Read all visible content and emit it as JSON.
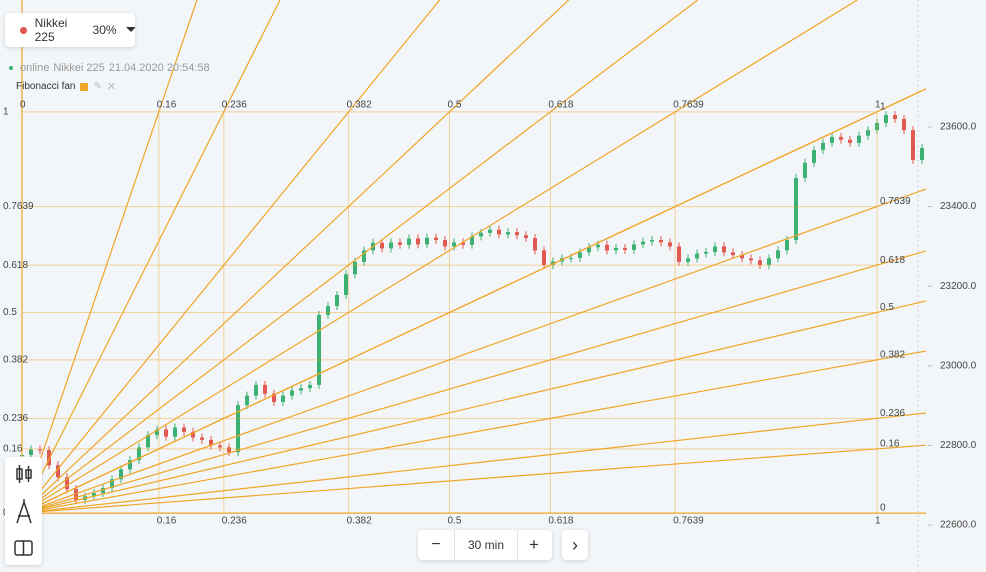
{
  "header": {
    "instrument": "Nikkei 225",
    "share": "30%"
  },
  "status": {
    "state": "online",
    "instrument": "Nikkei 225",
    "timestamp": "21.04.2020 20:54:58"
  },
  "drawing": {
    "label": "Fibonacci fan"
  },
  "controls": {
    "minus": "−",
    "timeframe": "30 min",
    "plus": "+",
    "next": "›"
  },
  "chart_data": {
    "type": "candlestick",
    "values": [
      22776,
      22790,
      22788,
      22750,
      22720,
      22690,
      22663,
      22672,
      22680,
      22693,
      22715,
      22740,
      22763,
      22795,
      22826,
      22840,
      22822,
      22845,
      22834,
      22820,
      22814,
      22800,
      22795,
      22783,
      22901,
      22925,
      22952,
      22930,
      22909,
      22925,
      22938,
      22944,
      22952,
      23128,
      23150,
      23178,
      23230,
      23261,
      23290,
      23309,
      23295,
      23310,
      23304,
      23320,
      23305,
      23322,
      23316,
      23300,
      23310,
      23304,
      23325,
      23334,
      23342,
      23330,
      23336,
      23328,
      23321,
      23290,
      23253,
      23262,
      23270,
      23271,
      23285,
      23298,
      23304,
      23290,
      23296,
      23291,
      23305,
      23312,
      23316,
      23310,
      23300,
      23261,
      23270,
      23282,
      23286,
      23300,
      23285,
      23278,
      23270,
      23265,
      23253,
      23270,
      23290,
      23316,
      23472,
      23510,
      23542,
      23560,
      23575,
      23568,
      23560,
      23578,
      23592,
      23610,
      23630,
      23620,
      23592,
      23517,
      23547
    ],
    "up_color": "#3bb273",
    "down_color": "#e0584f",
    "ylim": [
      22482,
      23919
    ],
    "yticks": [
      {
        "value": 22600,
        "label": "22600.0"
      },
      {
        "value": 22800,
        "label": "22800.0"
      },
      {
        "value": 23000,
        "label": "23000.0"
      },
      {
        "value": 23200,
        "label": "23200.0"
      },
      {
        "value": 23400,
        "label": "23400.0"
      },
      {
        "value": 23600,
        "label": "23600.0"
      }
    ],
    "fib": {
      "color": "#f0a526",
      "levels": [
        0,
        0.16,
        0.236,
        0.382,
        0.5,
        0.618,
        0.7639,
        1
      ],
      "start": [
        0,
        22630
      ],
      "end": [
        95,
        23638
      ]
    }
  }
}
